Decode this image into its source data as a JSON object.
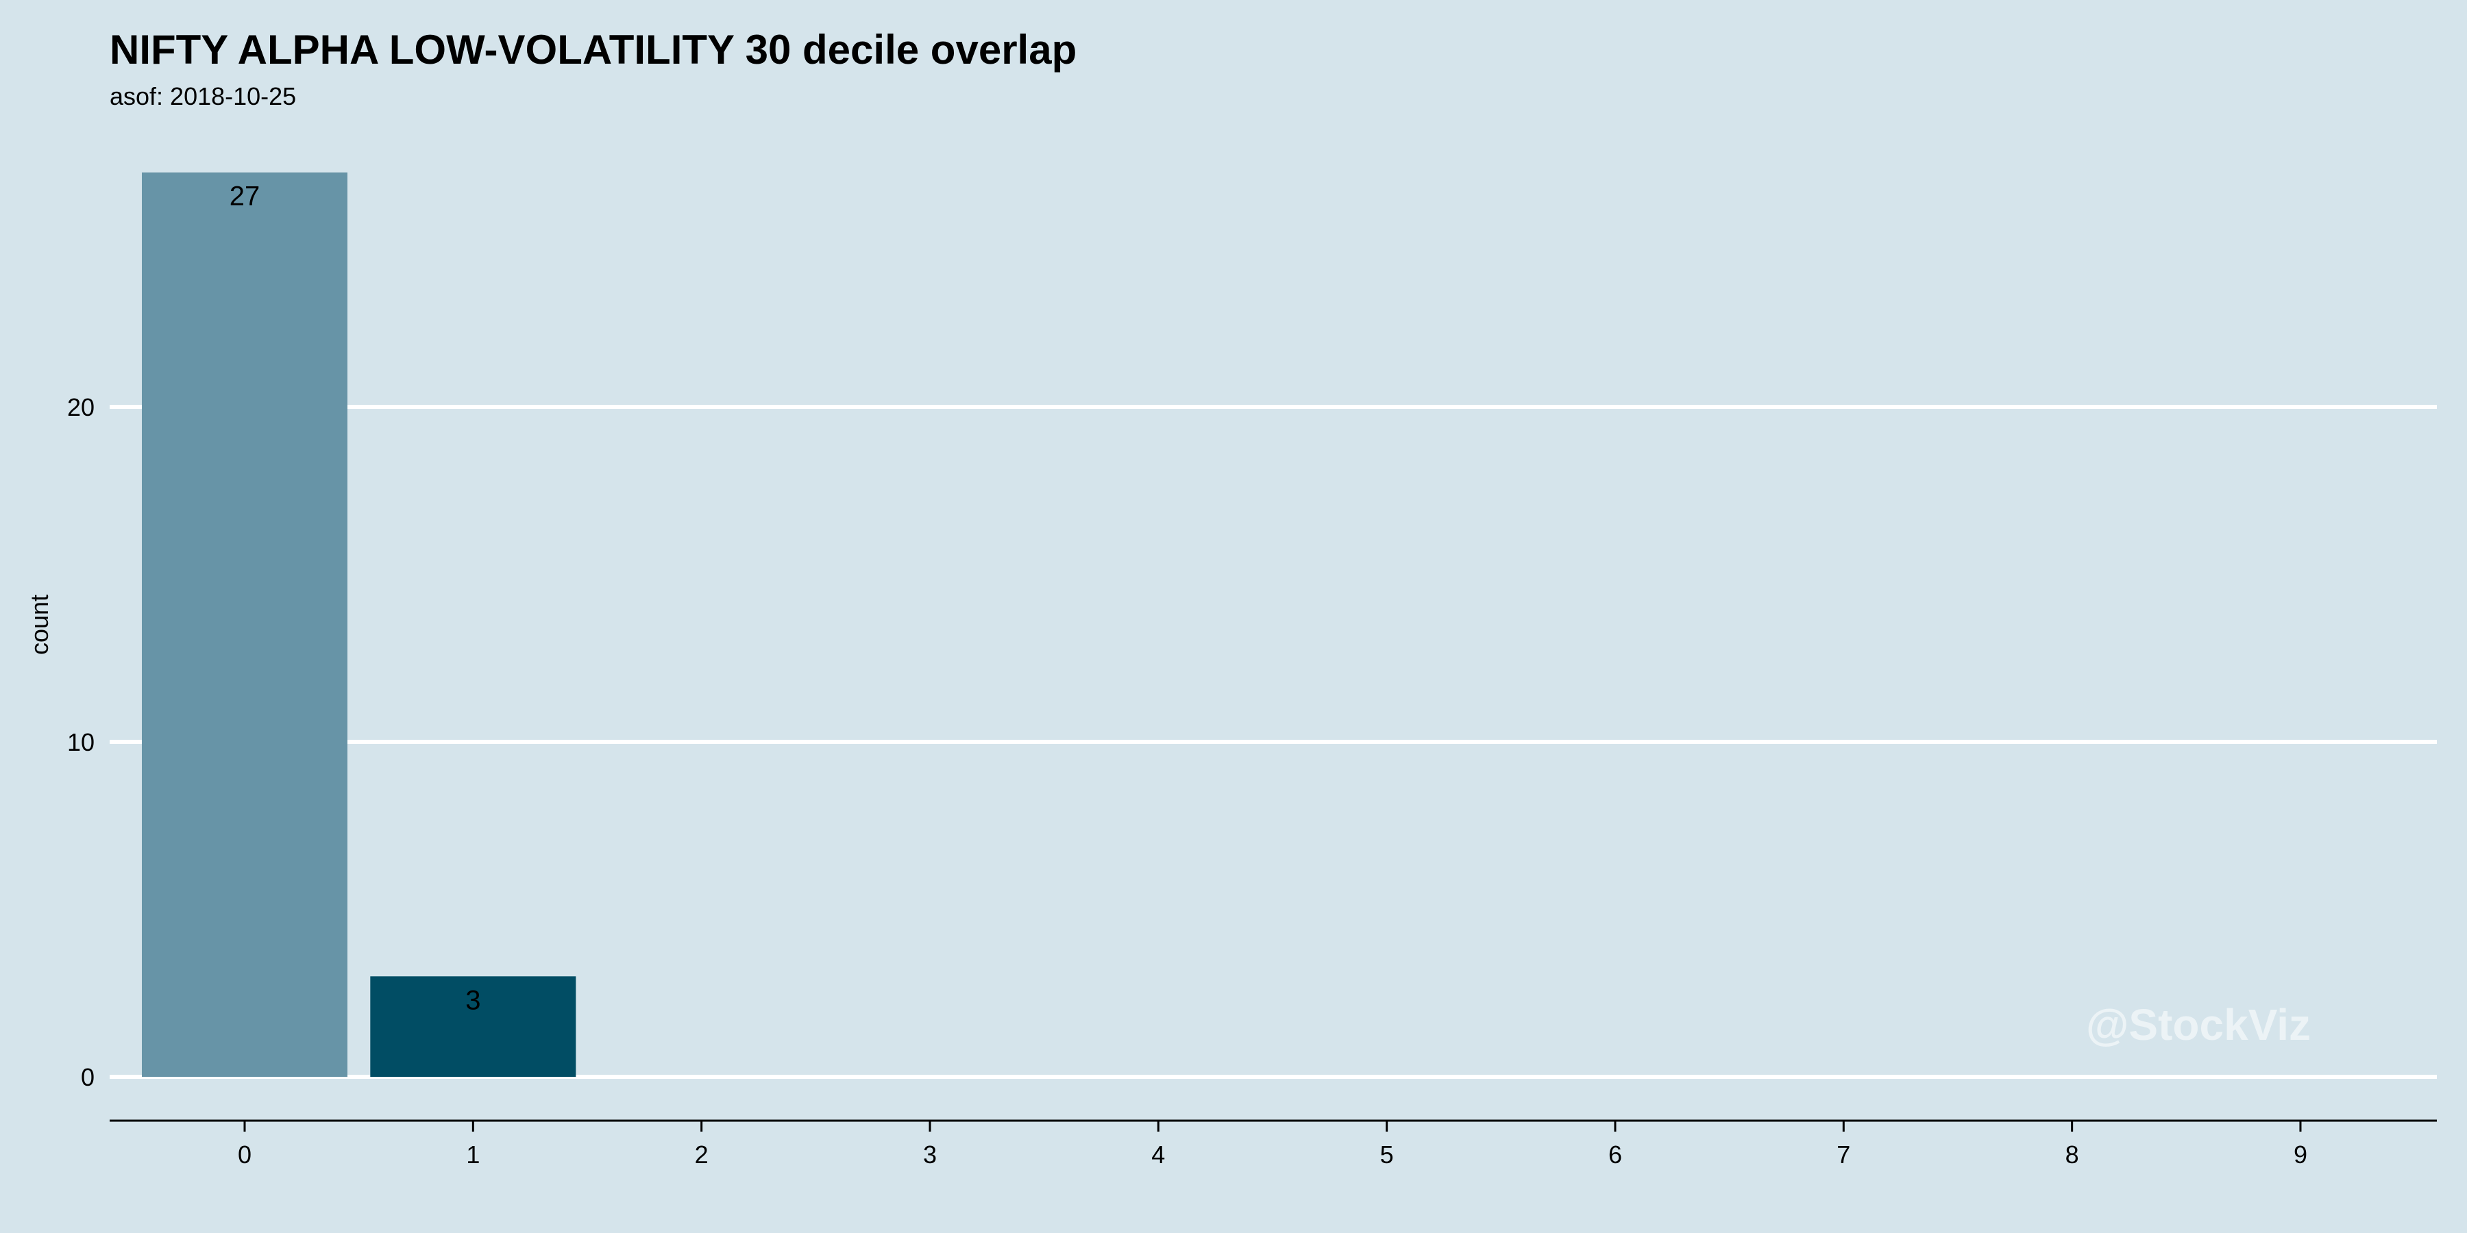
{
  "chart_data": {
    "type": "bar",
    "title": "NIFTY ALPHA LOW-VOLATILITY 30 decile overlap",
    "subtitle": "asof: 2018-10-25",
    "xlabel": "",
    "ylabel": "count",
    "categories": [
      "0",
      "1",
      "2",
      "3",
      "4",
      "5",
      "6",
      "7",
      "8",
      "9"
    ],
    "values": [
      27,
      3,
      0,
      0,
      0,
      0,
      0,
      0,
      0,
      0
    ],
    "data_labels": [
      "27",
      "3",
      "",
      "",
      "",
      "",
      "",
      "",
      "",
      ""
    ],
    "bar_colors": [
      "#6794a7",
      "#014d64",
      "#014d64",
      "#014d64",
      "#014d64",
      "#014d64",
      "#014d64",
      "#014d64",
      "#014d64",
      "#014d64"
    ],
    "y_ticks": [
      0,
      10,
      20
    ],
    "y_tick_labels": [
      "0",
      "10",
      "20"
    ],
    "ylim": [
      0,
      28
    ],
    "grid": "horizontal",
    "legend": "none",
    "background": "#d5e4eb",
    "gridline_color": "#ffffff",
    "watermark": "@StockViz"
  }
}
